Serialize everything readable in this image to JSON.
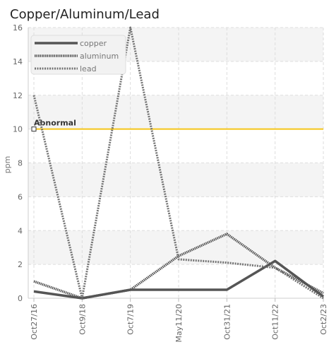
{
  "chart_data": {
    "type": "line",
    "title": "Copper/Aluminum/Lead",
    "ylabel": "ppm",
    "xlabel": "",
    "ylim": [
      0,
      16
    ],
    "yticks": [
      0,
      2,
      4,
      6,
      8,
      10,
      12,
      14,
      16
    ],
    "grid": true,
    "legend_position": "top-left",
    "categories": [
      "Oct27/16",
      "Oct9/18",
      "Oct7/19",
      "May11/20",
      "Oct31/21",
      "Oct11/22",
      "Oct2/23"
    ],
    "series": [
      {
        "name": "copper",
        "values": [
          0.4,
          0.0,
          0.5,
          0.5,
          0.5,
          2.2,
          0.1
        ],
        "color": "#555555",
        "style": "solid"
      },
      {
        "name": "aluminum",
        "values": [
          1.0,
          0.0,
          0.5,
          2.5,
          3.8,
          1.8,
          0.3
        ],
        "color": "#555555",
        "style": "dense-dot"
      },
      {
        "name": "lead",
        "values": [
          12.0,
          0.0,
          16.0,
          2.3,
          2.1,
          1.8,
          0.0
        ],
        "color": "#666666",
        "style": "light-dot"
      }
    ],
    "threshold": {
      "label": "Abnormal",
      "value": 10,
      "color": "#f5c518"
    }
  }
}
